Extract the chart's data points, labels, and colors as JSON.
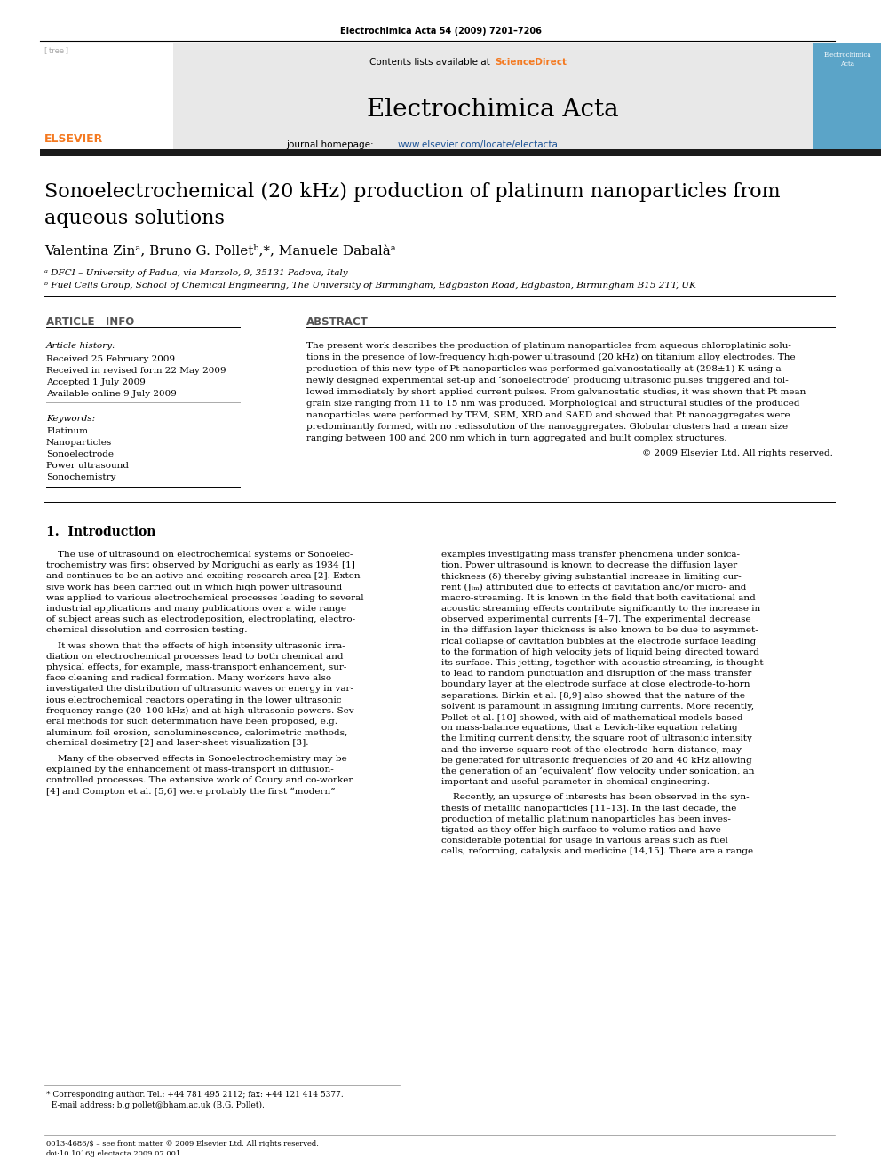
{
  "bg_color": "#ffffff",
  "journal_ref": "Electrochimica Acta 54 (2009) 7201–7206",
  "journal_name": "Electrochimica Acta",
  "title_line1": "Sonoelectrochemical (20 kHz) production of platinum nanoparticles from",
  "title_line2": "aqueous solutions",
  "authors": "Valentina Zinᵃ, Bruno G. Polletᵇ,*, Manuele Dabalàᵃ",
  "affil1": "ᵃ DFCI – University of Padua, via Marzolo, 9, 35131 Padova, Italy",
  "affil2": "ᵇ Fuel Cells Group, School of Chemical Engineering, The University of Birmingham, Edgbaston Road, Edgbaston, Birmingham B15 2TT, UK",
  "article_info_header": "ARTICLE   INFO",
  "abstract_header": "ABSTRACT",
  "article_history_label": "Article history:",
  "received": "Received 25 February 2009",
  "received_revised": "Received in revised form 22 May 2009",
  "accepted": "Accepted 1 July 2009",
  "available": "Available online 9 July 2009",
  "keywords_label": "Keywords:",
  "keyword1": "Platinum",
  "keyword2": "Nanoparticles",
  "keyword3": "Sonoelectrode",
  "keyword4": "Power ultrasound",
  "keyword5": "Sonochemistry",
  "abstract_lines": [
    "The present work describes the production of platinum nanoparticles from aqueous chloroplatinic solu-",
    "tions in the presence of low-frequency high-power ultrasound (20 kHz) on titanium alloy electrodes. The",
    "production of this new type of Pt nanoparticles was performed galvanostatically at (298±1) K using a",
    "newly designed experimental set-up and ‘sonoelectrode’ producing ultrasonic pulses triggered and fol-",
    "lowed immediately by short applied current pulses. From galvanostatic studies, it was shown that Pt mean",
    "grain size ranging from 11 to 15 nm was produced. Morphological and structural studies of the produced",
    "nanoparticles were performed by TEM, SEM, XRD and SAED and showed that Pt nanoaggregates were",
    "predominantly formed, with no redissolution of the nanoaggregates. Globular clusters had a mean size",
    "ranging between 100 and 200 nm which in turn aggregated and built complex structures."
  ],
  "copyright": "© 2009 Elsevier Ltd. All rights reserved.",
  "section1_header": "1.  Introduction",
  "intro_c1_lines": [
    "    The use of ultrasound on electrochemical systems or Sonoelec-",
    "trochemistry was first observed by Moriguchi as early as 1934 [1]",
    "and continues to be an active and exciting research area [2]. Exten-",
    "sive work has been carried out in which high power ultrasound",
    "was applied to various electrochemical processes leading to several",
    "industrial applications and many publications over a wide range",
    "of subject areas such as electrodeposition, electroplating, electro-",
    "chemical dissolution and corrosion testing.",
    "",
    "    It was shown that the effects of high intensity ultrasonic irra-",
    "diation on electrochemical processes lead to both chemical and",
    "physical effects, for example, mass-transport enhancement, sur-",
    "face cleaning and radical formation. Many workers have also",
    "investigated the distribution of ultrasonic waves or energy in var-",
    "ious electrochemical reactors operating in the lower ultrasonic",
    "frequency range (20–100 kHz) and at high ultrasonic powers. Sev-",
    "eral methods for such determination have been proposed, e.g.",
    "aluminum foil erosion, sonoluminescence, calorimetric methods,",
    "chemical dosimetry [2] and laser-sheet visualization [3].",
    "",
    "    Many of the observed effects in Sonoelectrochemistry may be",
    "explained by the enhancement of mass-transport in diffusion-",
    "controlled processes. The extensive work of Coury and co-worker",
    "[4] and Compton et al. [5,6] were probably the first “modern”"
  ],
  "intro_c2_lines": [
    "examples investigating mass transfer phenomena under sonica-",
    "tion. Power ultrasound is known to decrease the diffusion layer",
    "thickness (δ) thereby giving substantial increase in limiting cur-",
    "rent (Jₗₘ) attributed due to effects of cavitation and/or micro- and",
    "macro-streaming. It is known in the field that both cavitational and",
    "acoustic streaming effects contribute significantly to the increase in",
    "observed experimental currents [4–7]. The experimental decrease",
    "in the diffusion layer thickness is also known to be due to asymmet-",
    "rical collapse of cavitation bubbles at the electrode surface leading",
    "to the formation of high velocity jets of liquid being directed toward",
    "its surface. This jetting, together with acoustic streaming, is thought",
    "to lead to random punctuation and disruption of the mass transfer",
    "boundary layer at the electrode surface at close electrode-to-horn",
    "separations. Birkin et al. [8,9] also showed that the nature of the",
    "solvent is paramount in assigning limiting currents. More recently,",
    "Pollet et al. [10] showed, with aid of mathematical models based",
    "on mass-balance equations, that a Levich-like equation relating",
    "the limiting current density, the square root of ultrasonic intensity",
    "and the inverse square root of the electrode–horn distance, may",
    "be generated for ultrasonic frequencies of 20 and 40 kHz allowing",
    "the generation of an ‘equivalent’ flow velocity under sonication, an",
    "important and useful parameter in chemical engineering.",
    "",
    "    Recently, an upsurge of interests has been observed in the syn-",
    "thesis of metallic nanoparticles [11–13]. In the last decade, the",
    "production of metallic platinum nanoparticles has been inves-",
    "tigated as they offer high surface-to-volume ratios and have",
    "considerable potential for usage in various areas such as fuel",
    "cells, reforming, catalysis and medicine [14,15]. There are a range"
  ],
  "footnote1": "* Corresponding author. Tel.: +44 781 495 2112; fax: +44 121 414 5377.",
  "footnote2": "  E-mail address: b.g.pollet@bham.ac.uk (B.G. Pollet).",
  "footer1": "0013-4686/$ – see front matter © 2009 Elsevier Ltd. All rights reserved.",
  "footer2": "doi:10.1016/j.electacta.2009.07.001",
  "header_box_color": "#e8e8e8",
  "dark_bar_color": "#1a1a1a",
  "sciencedirect_color": "#f47920",
  "link_color": "#1a5296",
  "elsevier_color": "#f47920",
  "cover_bg": "#5ba4c8",
  "gray_text": "#555555"
}
